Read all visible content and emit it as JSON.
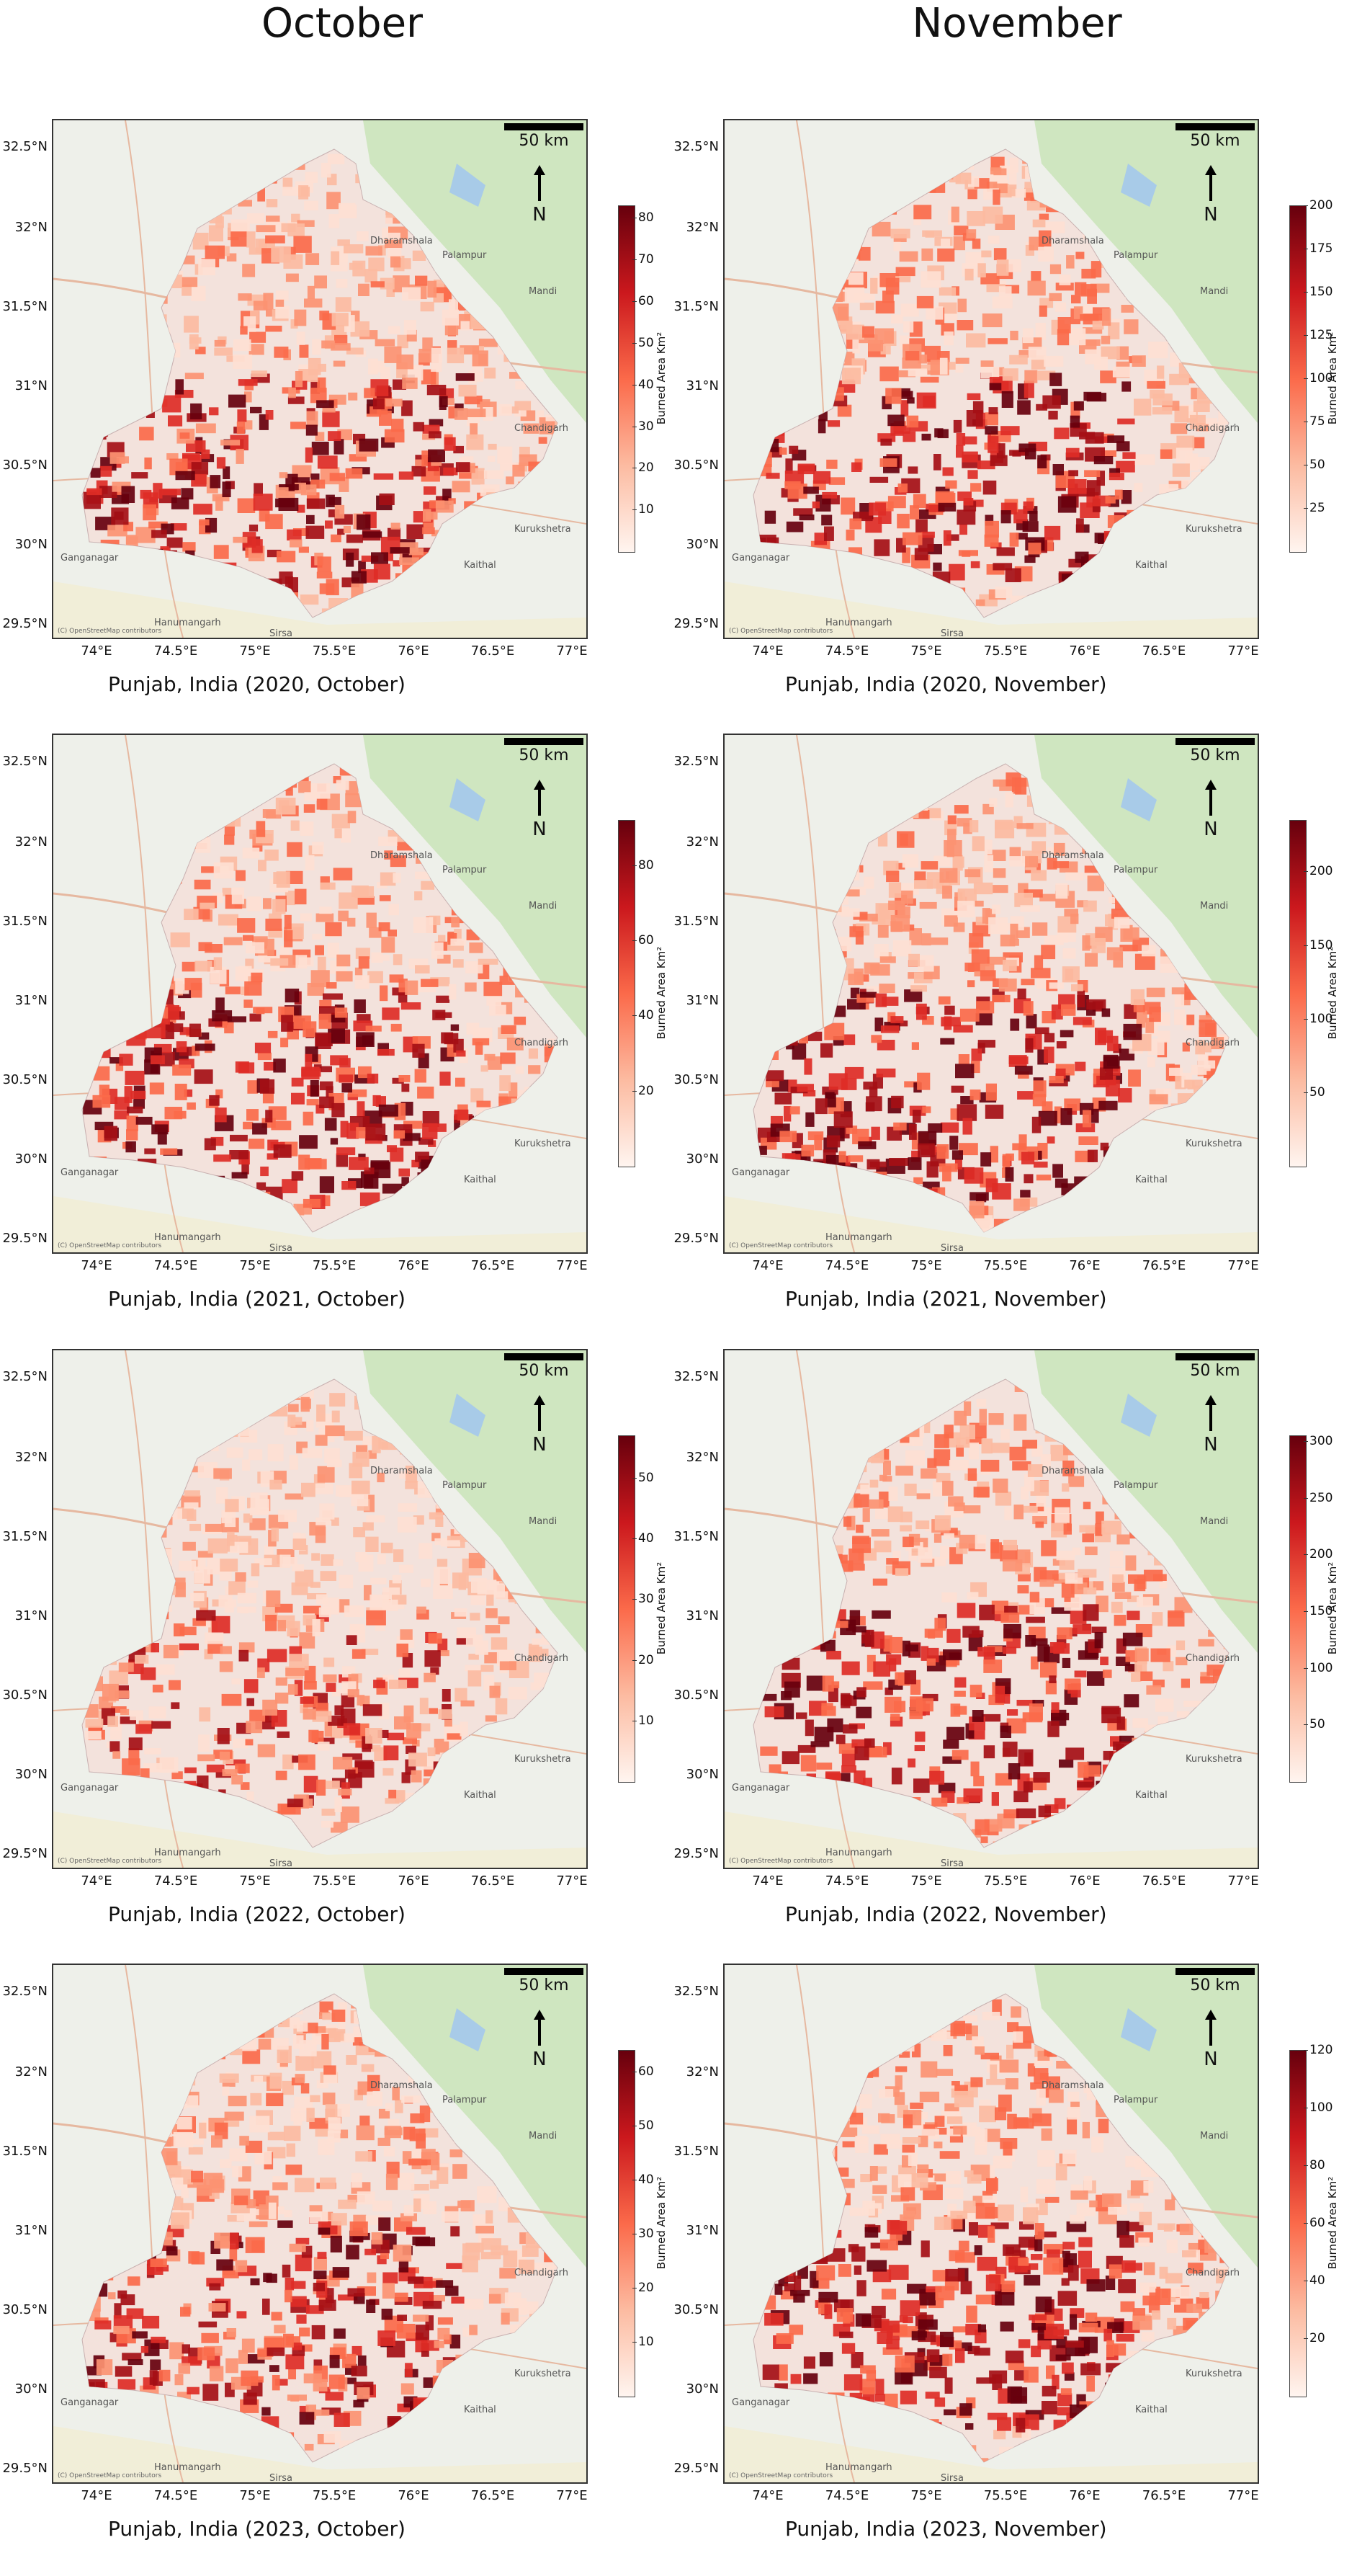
{
  "columns": {
    "left_title": "October",
    "right_title": "November"
  },
  "map_common": {
    "scale_label": "50 km",
    "north_label": "N",
    "colorbar_label": "Burned Area Km²",
    "lat_ticks": [
      "32.5°N",
      "32°N",
      "31.5°N",
      "31°N",
      "30.5°N",
      "30°N",
      "29.5°N"
    ],
    "lon_ticks": [
      "74°E",
      "74.5°E",
      "75°E",
      "75.5°E",
      "76°E",
      "76.5°E",
      "77°E"
    ],
    "place_labels": [
      "Dharamshala",
      "Palampur",
      "Mandi",
      "Chandigarh",
      "Kurukshetra",
      "Kaithal",
      "Ganganagar",
      "Hanumangarh",
      "Sirsa"
    ],
    "credit": "(C) OpenStreetMap contributors"
  },
  "panels": [
    {
      "caption": "Punjab, India (2020, October)",
      "cbar_ticks": [
        "80",
        "70",
        "60",
        "50",
        "40",
        "30",
        "20",
        "10"
      ],
      "cbar_max": 83,
      "intensity": "medium"
    },
    {
      "caption": "Punjab, India (2020, November)",
      "cbar_ticks": [
        "200",
        "175",
        "150",
        "125",
        "100",
        "75",
        "50",
        "25"
      ],
      "cbar_max": 200,
      "intensity": "high"
    },
    {
      "caption": "Punjab, India (2021, October)",
      "cbar_ticks": [
        "80",
        "60",
        "40",
        "20"
      ],
      "cbar_max": 92,
      "intensity": "high"
    },
    {
      "caption": "Punjab, India (2021, November)",
      "cbar_ticks": [
        "200",
        "150",
        "100",
        "50"
      ],
      "cbar_max": 235,
      "intensity": "high"
    },
    {
      "caption": "Punjab, India (2022, October)",
      "cbar_ticks": [
        "50",
        "40",
        "30",
        "20",
        "10"
      ],
      "cbar_max": 57,
      "intensity": "low"
    },
    {
      "caption": "Punjab, India (2022, November)",
      "cbar_ticks": [
        "300",
        "250",
        "200",
        "150",
        "100",
        "50"
      ],
      "cbar_max": 305,
      "intensity": "high"
    },
    {
      "caption": "Punjab, India (2023, October)",
      "cbar_ticks": [
        "60",
        "50",
        "40",
        "30",
        "20",
        "10"
      ],
      "cbar_max": 64,
      "intensity": "medium"
    },
    {
      "caption": "Punjab, India (2023, November)",
      "cbar_ticks": [
        "120",
        "100",
        "80",
        "60",
        "40",
        "20"
      ],
      "cbar_max": 120,
      "intensity": "high"
    }
  ]
}
